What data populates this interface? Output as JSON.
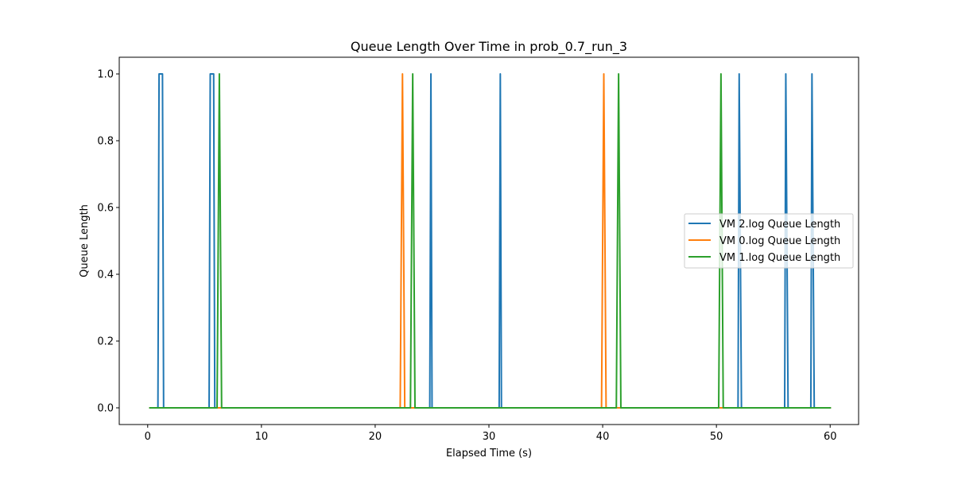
{
  "chart_data": {
    "type": "line",
    "title": "Queue Length Over Time in prob_0.7_run_3",
    "xlabel": "Elapsed Time (s)",
    "ylabel": "Queue Length",
    "xlim": [
      -2.5,
      62.5
    ],
    "ylim": [
      -0.05,
      1.05
    ],
    "xticks": [
      0,
      10,
      20,
      30,
      40,
      50,
      60
    ],
    "yticks": [
      0.0,
      0.2,
      0.4,
      0.6,
      0.8,
      1.0
    ],
    "xtick_labels": [
      "0",
      "10",
      "20",
      "30",
      "40",
      "50",
      "60"
    ],
    "ytick_labels": [
      "0.0",
      "0.2",
      "0.4",
      "0.6",
      "0.8",
      "1.0"
    ],
    "grid": false,
    "legend_position": "center-right",
    "series": [
      {
        "name": "VM 2.log Queue Length",
        "color": "#1f77b4",
        "x": [
          0.2,
          0.9,
          1.0,
          1.3,
          1.4,
          5.4,
          5.5,
          5.8,
          5.9,
          24.8,
          24.9,
          25.0,
          30.9,
          31.0,
          31.1,
          51.9,
          52.0,
          52.2,
          56.0,
          56.1,
          56.3,
          58.3,
          58.4,
          58.6,
          60.0
        ],
        "y": [
          0,
          0,
          1,
          1,
          0,
          0,
          1,
          1,
          0,
          0,
          1,
          0,
          0,
          1,
          0,
          0,
          1,
          0,
          0,
          1,
          0,
          0,
          1,
          0,
          0
        ]
      },
      {
        "name": "VM 0.log Queue Length",
        "color": "#ff7f0e",
        "x": [
          0.2,
          22.2,
          22.4,
          22.6,
          39.9,
          40.1,
          40.3,
          60.0
        ],
        "y": [
          0,
          0,
          1,
          0,
          0,
          1,
          0,
          0
        ]
      },
      {
        "name": "VM 1.log Queue Length",
        "color": "#2ca02c",
        "x": [
          0.2,
          6.1,
          6.3,
          6.5,
          23.1,
          23.3,
          23.5,
          41.2,
          41.4,
          41.6,
          50.2,
          50.4,
          50.6,
          60.0
        ],
        "y": [
          0,
          0,
          1,
          0,
          0,
          1,
          0,
          0,
          1,
          0,
          0,
          1,
          0,
          0
        ]
      }
    ]
  }
}
